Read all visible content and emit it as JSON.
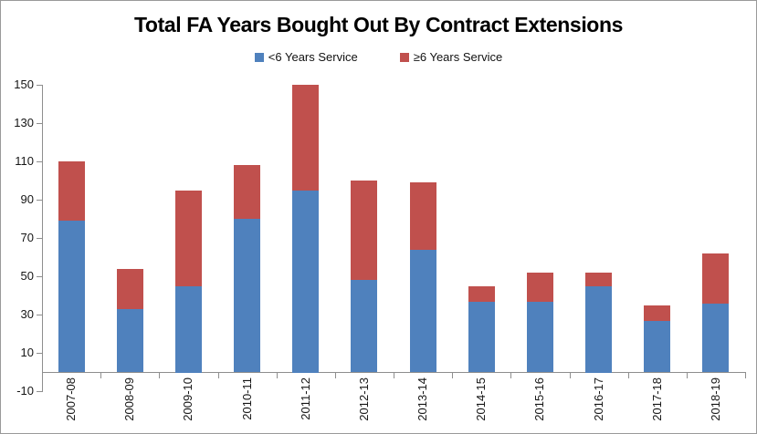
{
  "window": {
    "background": "#ffffff",
    "border_color": "#9a9a9a"
  },
  "chart_data": {
    "type": "bar",
    "stacked": true,
    "title": "Total FA Years Bought Out By Contract Extensions",
    "xlabel": "",
    "ylabel": "",
    "legend_position": "top",
    "gridlines": false,
    "axis_color": "#8e8e8e",
    "label_color": "#161616",
    "categories": [
      "2007-08",
      "2008-09",
      "2009-10",
      "2010-11",
      "2011-12",
      "2012-13",
      "2013-14",
      "2014-15",
      "2015-16",
      "2016-17",
      "2017-18",
      "2018-19"
    ],
    "series": [
      {
        "name": "<6 Years Service",
        "color": "#4F81BD",
        "values": [
          79,
          33,
          45,
          80,
          95,
          48,
          64,
          37,
          37,
          45,
          27,
          36
        ]
      },
      {
        "name": "≥6 Years Service",
        "color": "#C0504D",
        "values": [
          31,
          21,
          50,
          28,
          55,
          52,
          35,
          8,
          15,
          7,
          8,
          26
        ]
      }
    ],
    "stack_totals": [
      110,
      54,
      95,
      108,
      150,
      100,
      99,
      45,
      52,
      52,
      35,
      62
    ],
    "y_axis": {
      "min": -10,
      "max": 150,
      "tick_step": 20,
      "ticks": [
        150,
        130,
        110,
        90,
        70,
        50,
        30,
        10,
        -10
      ]
    }
  }
}
